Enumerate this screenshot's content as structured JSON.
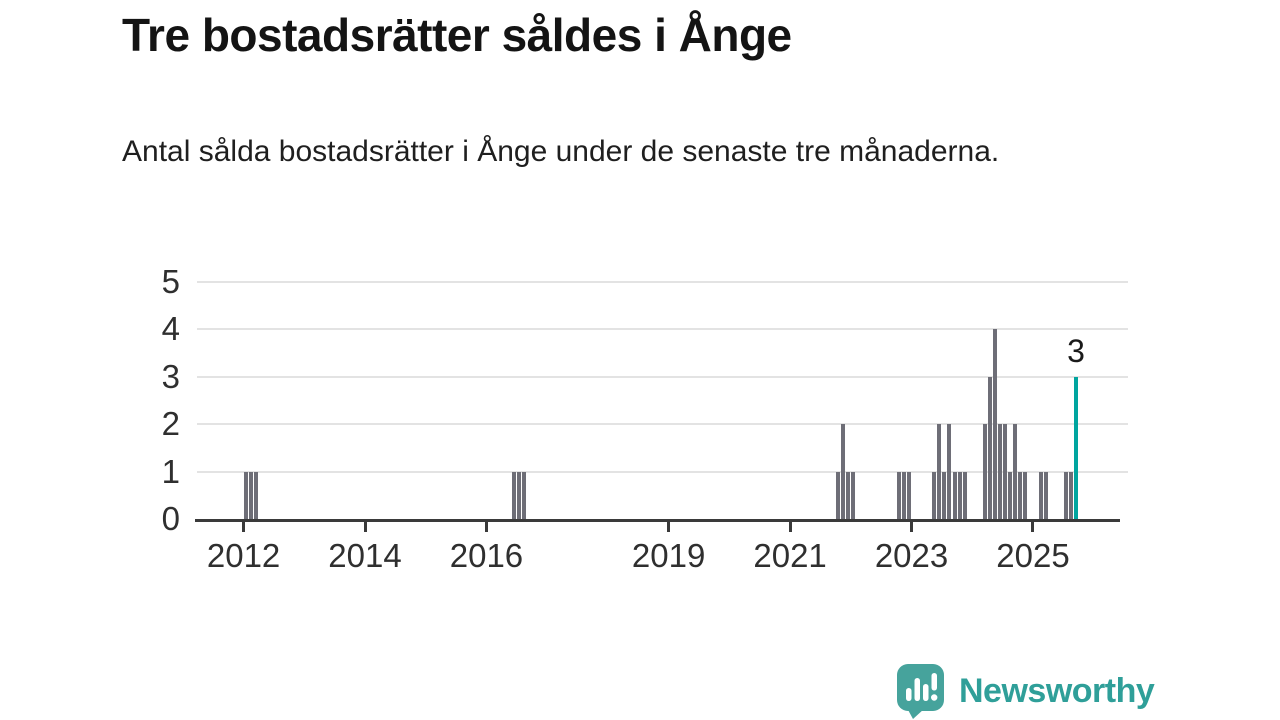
{
  "header": {
    "title": "Tre bostadsrätter såldes i Ånge",
    "subtitle": "Antal sålda bostadsrätter i Ånge under de senaste tre månaderna."
  },
  "footer": {
    "brand": "Newsworthy"
  },
  "colors": {
    "bar": "#6e6e77",
    "highlight": "#00a59f",
    "axis": "#3a3a3a",
    "gridline": "#e3e3e3",
    "tick_label": "#2f2f2f",
    "title_text": "#141414",
    "body_text": "#1f1f1f",
    "value_label": "#1a1a1a",
    "brand_teal": "#2f9f99",
    "logo_badge": "#46a39c"
  },
  "chart_data": {
    "type": "bar",
    "title": "Tre bostadsrätter såldes i Ånge",
    "xlabel": "",
    "ylabel": "",
    "ylim": [
      0,
      5
    ],
    "y_ticks": [
      0,
      1,
      2,
      3,
      4,
      5
    ],
    "x_ticks": [
      "2012",
      "2014",
      "2016",
      "2019",
      "2021",
      "2023",
      "2025"
    ],
    "x_domain_years": [
      2011.2,
      2026.4
    ],
    "grid": "horizontal",
    "legend": "none",
    "highlight_label": "3",
    "bars": [
      {
        "month": "2012-01",
        "value": 1
      },
      {
        "month": "2012-02",
        "value": 1
      },
      {
        "month": "2012-03",
        "value": 1
      },
      {
        "month": "2016-06",
        "value": 1
      },
      {
        "month": "2016-07",
        "value": 1
      },
      {
        "month": "2016-08",
        "value": 1
      },
      {
        "month": "2021-10",
        "value": 1
      },
      {
        "month": "2021-11",
        "value": 2
      },
      {
        "month": "2021-12",
        "value": 1
      },
      {
        "month": "2022-01",
        "value": 1
      },
      {
        "month": "2022-10",
        "value": 1
      },
      {
        "month": "2022-11",
        "value": 1
      },
      {
        "month": "2022-12",
        "value": 1
      },
      {
        "month": "2023-05",
        "value": 1
      },
      {
        "month": "2023-06",
        "value": 2
      },
      {
        "month": "2023-07",
        "value": 1
      },
      {
        "month": "2023-08",
        "value": 2
      },
      {
        "month": "2023-09",
        "value": 1
      },
      {
        "month": "2023-10",
        "value": 1
      },
      {
        "month": "2023-11",
        "value": 1
      },
      {
        "month": "2024-03",
        "value": 2
      },
      {
        "month": "2024-04",
        "value": 3
      },
      {
        "month": "2024-05",
        "value": 4
      },
      {
        "month": "2024-06",
        "value": 2
      },
      {
        "month": "2024-07",
        "value": 2
      },
      {
        "month": "2024-08",
        "value": 1
      },
      {
        "month": "2024-09",
        "value": 2
      },
      {
        "month": "2024-10",
        "value": 1
      },
      {
        "month": "2024-11",
        "value": 1
      },
      {
        "month": "2025-02",
        "value": 1
      },
      {
        "month": "2025-03",
        "value": 1
      },
      {
        "month": "2025-07",
        "value": 1
      },
      {
        "month": "2025-08",
        "value": 1
      },
      {
        "month": "2025-09",
        "value": 3,
        "highlight": true
      }
    ]
  }
}
